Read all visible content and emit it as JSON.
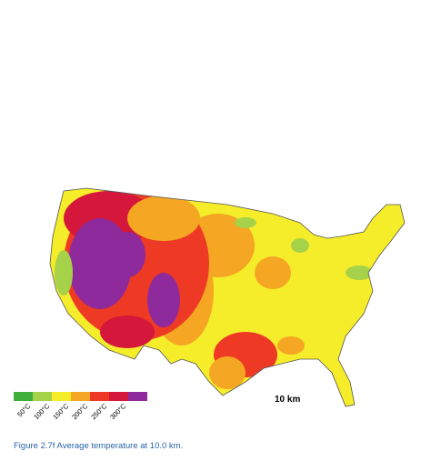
{
  "map": {
    "scale_label": "10 km",
    "legend": {
      "colors": [
        "#3fae3a",
        "#a6d24a",
        "#f5ec2a",
        "#f5a623",
        "#ee3a24",
        "#d4173a",
        "#8e2a9c"
      ],
      "labels": [
        "50°C",
        "100°C",
        "150°C",
        "200°C",
        "250°C",
        "300°C"
      ]
    }
  },
  "caption": "Figure 2.7f Average temperature at 10.0 km."
}
